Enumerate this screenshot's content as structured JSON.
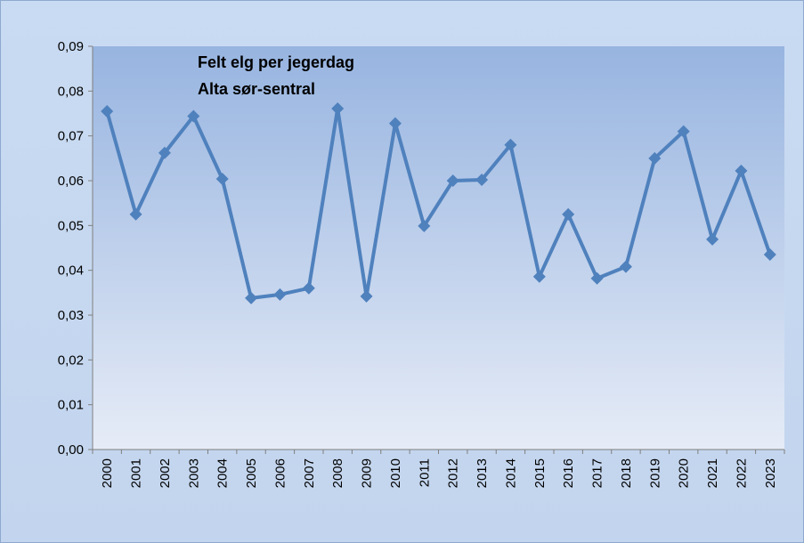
{
  "chart_data": {
    "type": "line",
    "title": "Felt elg per jegerdag",
    "subtitle": "Alta sør-sentral",
    "categories": [
      "2000",
      "2001",
      "2002",
      "2003",
      "2004",
      "2005",
      "2006",
      "2007",
      "2008",
      "2009",
      "2010",
      "2011",
      "2012",
      "2013",
      "2014",
      "2015",
      "2016",
      "2017",
      "2018",
      "2019",
      "2020",
      "2021",
      "2022",
      "2023"
    ],
    "values": [
      0.0755,
      0.0525,
      0.0662,
      0.0744,
      0.0604,
      0.0338,
      0.0346,
      0.036,
      0.0761,
      0.0342,
      0.0728,
      0.0499,
      0.06,
      0.0602,
      0.068,
      0.0386,
      0.0525,
      0.0382,
      0.0408,
      0.065,
      0.071,
      0.0469,
      0.0622,
      0.0435
    ],
    "color": "#4f81bd",
    "ylim": [
      0,
      0.09
    ],
    "yticks": [
      {
        "value": 0,
        "label": "0,00"
      },
      {
        "value": 0.01,
        "label": "0,01"
      },
      {
        "value": 0.02,
        "label": "0,02"
      },
      {
        "value": 0.03,
        "label": "0,03"
      },
      {
        "value": 0.04,
        "label": "0,04"
      },
      {
        "value": 0.05,
        "label": "0,05"
      },
      {
        "value": 0.06,
        "label": "0,06"
      },
      {
        "value": 0.07,
        "label": "0,07"
      },
      {
        "value": 0.08,
        "label": "0,08"
      },
      {
        "value": 0.09,
        "label": "0,09"
      }
    ],
    "grid": false
  }
}
